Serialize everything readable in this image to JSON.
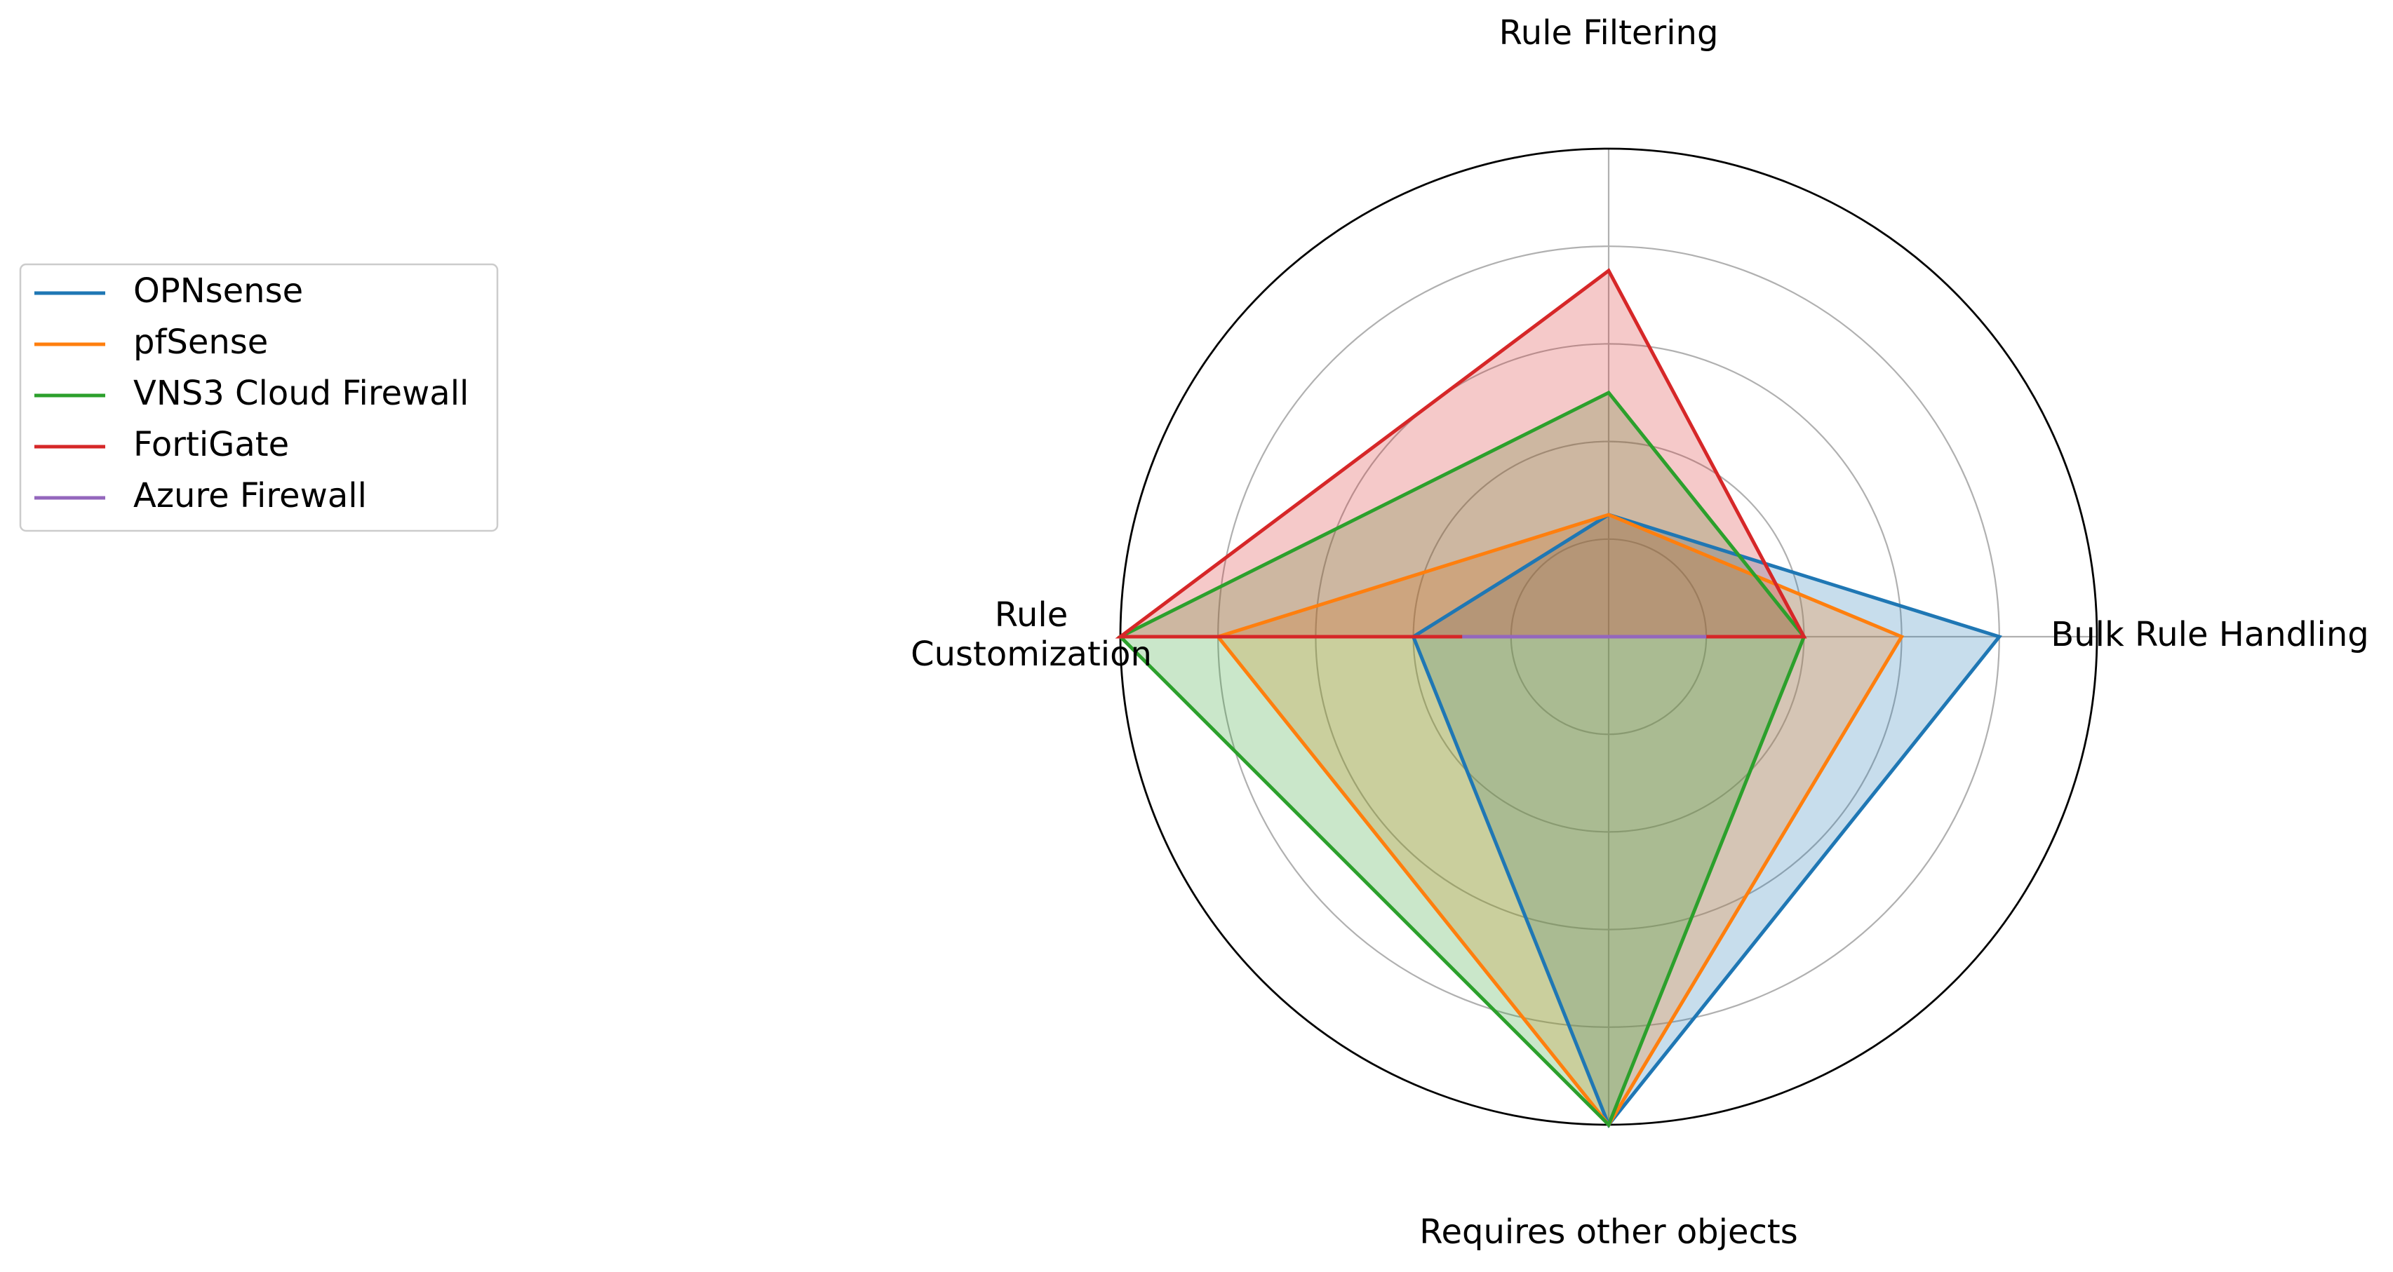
{
  "chart_data": {
    "type": "radar",
    "axes": [
      "Bulk Rule Handling",
      "Rule Filtering",
      "Rule\nCustomization",
      "Requires other objects"
    ],
    "rlim": [
      0,
      1
    ],
    "r_ticks": [
      0.2,
      0.4,
      0.6,
      0.8,
      1.0
    ],
    "grid": true,
    "legend_position": "left",
    "series": [
      {
        "name": "OPNsense",
        "color": "#1f77b4",
        "values": [
          0.8,
          0.25,
          0.4,
          1.0
        ],
        "fill": true
      },
      {
        "name": "pfSense",
        "color": "#ff7f0e",
        "values": [
          0.6,
          0.25,
          0.8,
          1.0
        ],
        "fill": true
      },
      {
        "name": "VNS3 Cloud Firewall",
        "color": "#2ca02c",
        "values": [
          0.4,
          0.5,
          1.0,
          1.0
        ],
        "fill": true
      },
      {
        "name": "FortiGate",
        "color": "#d62728",
        "values": [
          0.4,
          0.75,
          1.0,
          0.0
        ],
        "fill": true
      },
      {
        "name": "Azure Firewall",
        "color": "#9467bd",
        "values": [
          0.2,
          0.0,
          0.3,
          0.0
        ],
        "fill": false
      }
    ]
  }
}
